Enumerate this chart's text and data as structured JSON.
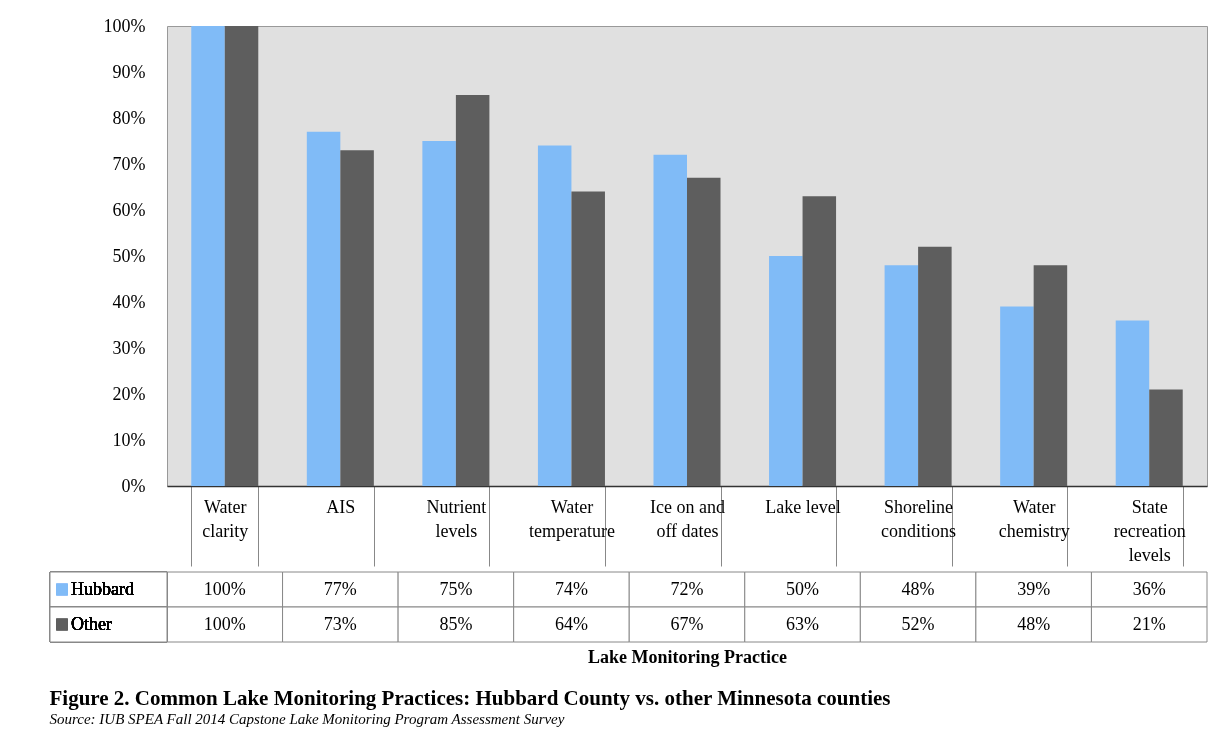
{
  "chart_data": {
    "type": "bar",
    "title": "Figure 2. Common Lake Monitoring Practices:  Hubbard County vs. other Minnesota counties",
    "xlabel": "Lake Monitoring Practice",
    "annotations": [
      "Source: IUB SPEA Fall 2014 Capstone Lake Monitoring Program Assessment Survey"
    ],
    "categories": [
      "Water clarity",
      "AIS",
      "Nutrient levels",
      "Water temperature",
      "Ice on and off dates",
      "Lake level",
      "Shoreline conditions",
      "Water chemistry",
      "State recreation levels"
    ],
    "series": [
      {
        "name": "Hubbard",
        "color": "#80bbf7",
        "values": [
          100,
          77,
          75,
          74,
          72,
          50,
          48,
          39,
          36
        ],
        "value_labels": [
          "100%",
          "77%",
          "75%",
          "74%",
          "72%",
          "50%",
          "48%",
          "39%",
          "36%"
        ]
      },
      {
        "name": "Other",
        "color": "#5e5e5e",
        "values": [
          100,
          73,
          85,
          64,
          67,
          63,
          52,
          48,
          21
        ],
        "value_labels": [
          "100%",
          "73%",
          "85%",
          "64%",
          "67%",
          "63%",
          "52%",
          "48%",
          "21%"
        ]
      }
    ],
    "ylim": [
      0,
      100
    ],
    "yticks": [
      {
        "value": 0,
        "label": "0%"
      },
      {
        "value": 10,
        "label": "10%"
      },
      {
        "value": 20,
        "label": "20%"
      },
      {
        "value": 30,
        "label": "30%"
      },
      {
        "value": 40,
        "label": "40%"
      },
      {
        "value": 50,
        "label": "50%"
      },
      {
        "value": 60,
        "label": "60%"
      },
      {
        "value": 70,
        "label": "70%"
      },
      {
        "value": 80,
        "label": "80%"
      },
      {
        "value": 90,
        "label": "90%"
      },
      {
        "value": 100,
        "label": "100%"
      }
    ],
    "grid": false,
    "legend": "bottom left"
  }
}
